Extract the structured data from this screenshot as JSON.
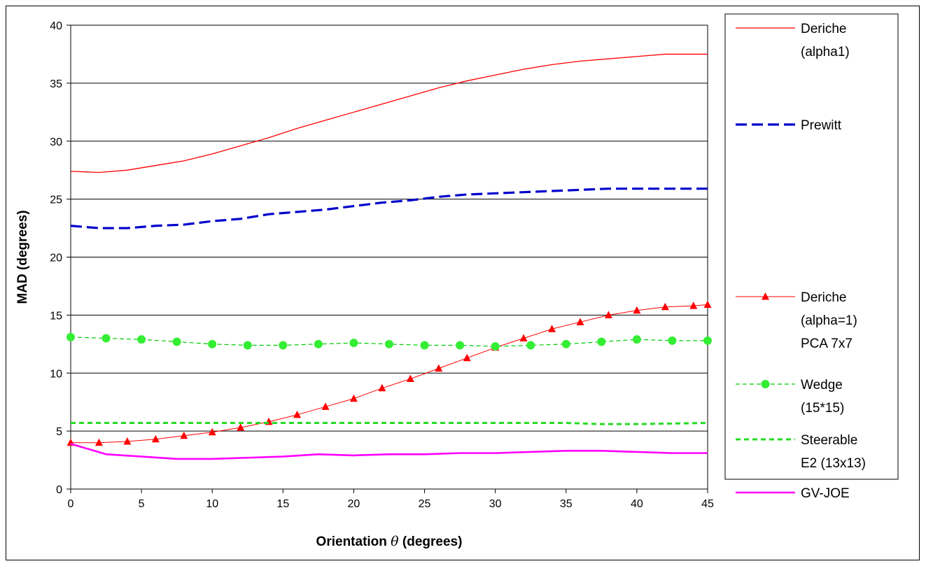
{
  "chart_data": {
    "type": "line",
    "title": "",
    "xlabel": "Orientation",
    "xlabel_symbol": "θ",
    "xlabel_unit": "(degrees)",
    "ylabel": "MAD (degrees)",
    "xlim": [
      0,
      45
    ],
    "ylim": [
      0,
      40
    ],
    "x_ticks": [
      0,
      5,
      10,
      15,
      20,
      25,
      30,
      35,
      40,
      45
    ],
    "y_ticks": [
      0,
      5,
      10,
      15,
      20,
      25,
      30,
      35,
      40
    ],
    "grid": "horizontal",
    "legend_position": "right",
    "series": [
      {
        "name": "Deriche (alpha1)",
        "legend_lines": [
          "Deriche",
          "(alpha1)"
        ],
        "color": "#ff0000",
        "style": "solid",
        "marker": "none",
        "x": [
          0,
          2,
          4,
          6,
          8,
          10,
          12,
          14,
          16,
          18,
          20,
          22,
          24,
          26,
          28,
          30,
          32,
          34,
          36,
          38,
          40,
          42,
          44,
          45
        ],
        "y": [
          27.4,
          27.3,
          27.5,
          27.9,
          28.3,
          28.9,
          29.6,
          30.3,
          31.1,
          31.8,
          32.5,
          33.2,
          33.9,
          34.6,
          35.2,
          35.7,
          36.2,
          36.6,
          36.9,
          37.1,
          37.3,
          37.5,
          37.5,
          37.5
        ]
      },
      {
        "name": "Prewitt",
        "legend_lines": [
          "Prewitt"
        ],
        "color": "#0000cc",
        "style": "dashed",
        "marker": "none",
        "x": [
          0,
          2,
          4,
          6,
          8,
          10,
          12,
          14,
          16,
          18,
          20,
          22,
          24,
          26,
          28,
          30,
          32,
          34,
          36,
          38,
          40,
          42,
          44,
          45
        ],
        "y": [
          22.7,
          22.5,
          22.5,
          22.7,
          22.8,
          23.1,
          23.3,
          23.7,
          23.9,
          24.1,
          24.4,
          24.7,
          24.9,
          25.2,
          25.4,
          25.5,
          25.6,
          25.7,
          25.8,
          25.9,
          25.9,
          25.9,
          25.9,
          25.9
        ]
      },
      {
        "name": "Deriche (alpha=1) PCA 7x7",
        "legend_lines": [
          "Deriche",
          "(alpha=1)",
          "PCA 7x7"
        ],
        "color": "#ff0000",
        "style": "solid-thin",
        "marker": "triangle",
        "x": [
          0,
          2,
          4,
          6,
          8,
          10,
          12,
          14,
          16,
          18,
          20,
          22,
          24,
          26,
          28,
          30,
          32,
          34,
          36,
          38,
          40,
          42,
          44,
          45
        ],
        "y": [
          4.0,
          4.0,
          4.1,
          4.3,
          4.6,
          4.9,
          5.3,
          5.8,
          6.4,
          7.1,
          7.8,
          8.7,
          9.5,
          10.4,
          11.3,
          12.2,
          13.0,
          13.8,
          14.4,
          15.0,
          15.4,
          15.7,
          15.8,
          15.9
        ]
      },
      {
        "name": "Wedge (15*15)",
        "legend_lines": [
          "Wedge",
          "(15*15)"
        ],
        "color": "#00cc00",
        "marker_color": "#33ee33",
        "style": "dashed-thin",
        "marker": "circle",
        "x": [
          0,
          2.5,
          5,
          7.5,
          10,
          12.5,
          15,
          17.5,
          20,
          22.5,
          25,
          27.5,
          30,
          32.5,
          35,
          37.5,
          40,
          42.5,
          45
        ],
        "y": [
          13.1,
          13.0,
          12.9,
          12.7,
          12.5,
          12.4,
          12.4,
          12.5,
          12.6,
          12.5,
          12.4,
          12.4,
          12.3,
          12.4,
          12.5,
          12.7,
          12.9,
          12.8,
          12.8
        ]
      },
      {
        "name": "Steerable E2 (13x13)",
        "legend_lines": [
          "Steerable",
          "E2 (13x13)"
        ],
        "color": "#22dd22",
        "style": "dotted",
        "marker": "none",
        "x": [
          0,
          5,
          10,
          15,
          20,
          25,
          30,
          35,
          37.5,
          40,
          45
        ],
        "y": [
          5.7,
          5.7,
          5.7,
          5.7,
          5.7,
          5.7,
          5.7,
          5.7,
          5.6,
          5.6,
          5.7
        ]
      },
      {
        "name": "GV-JOE",
        "legend_lines": [
          "GV-JOE"
        ],
        "color": "#ff00ff",
        "style": "solid-thick",
        "marker": "none",
        "x": [
          0,
          2.5,
          5,
          7.5,
          10,
          12.5,
          15,
          17.5,
          20,
          22.5,
          25,
          27.5,
          30,
          32.5,
          35,
          37.5,
          40,
          42.5,
          45
        ],
        "y": [
          3.9,
          3.0,
          2.8,
          2.6,
          2.6,
          2.7,
          2.8,
          3.0,
          2.9,
          3.0,
          3.0,
          3.1,
          3.1,
          3.2,
          3.3,
          3.3,
          3.2,
          3.1,
          3.1
        ]
      }
    ]
  }
}
